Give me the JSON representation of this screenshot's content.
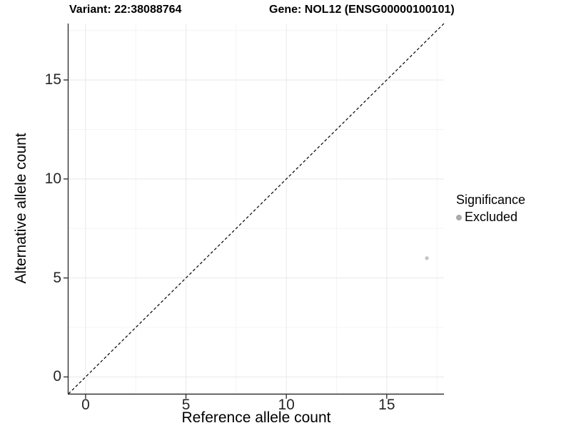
{
  "chart_data": {
    "type": "scatter",
    "titles": {
      "left": "Variant: 22:38088764",
      "right": "Gene: NOL12 (ENSG00000100101)"
    },
    "xlabel": "Reference allele count",
    "ylabel": "Alternative allele count",
    "xlim": [
      -0.85,
      17.85
    ],
    "ylim": [
      -0.85,
      17.85
    ],
    "x_ticks": [
      0,
      5,
      10,
      15
    ],
    "y_ticks": [
      0,
      5,
      10,
      15
    ],
    "x_minor_ticks": [
      2.5,
      7.5,
      12.5,
      17.5
    ],
    "y_minor_ticks": [
      2.5,
      7.5,
      12.5,
      17.5
    ],
    "grid": true,
    "identity_line": {
      "style": "dashed",
      "slope": 1,
      "intercept": 0,
      "color": "#000000"
    },
    "series": [
      {
        "name": "Excluded",
        "color": "#c3c3c3",
        "points": [
          {
            "x": 17,
            "y": 6
          }
        ]
      }
    ],
    "legend": {
      "title": "Significance",
      "position": "right",
      "entries": [
        {
          "label": "Excluded",
          "color": "#aaaaaa",
          "marker": "circle"
        }
      ]
    },
    "colors": {
      "grid_major": "#e8e8e8",
      "grid_minor": "#f4f4f4",
      "axis_line": "#333333",
      "tick_text": "#262626"
    }
  }
}
